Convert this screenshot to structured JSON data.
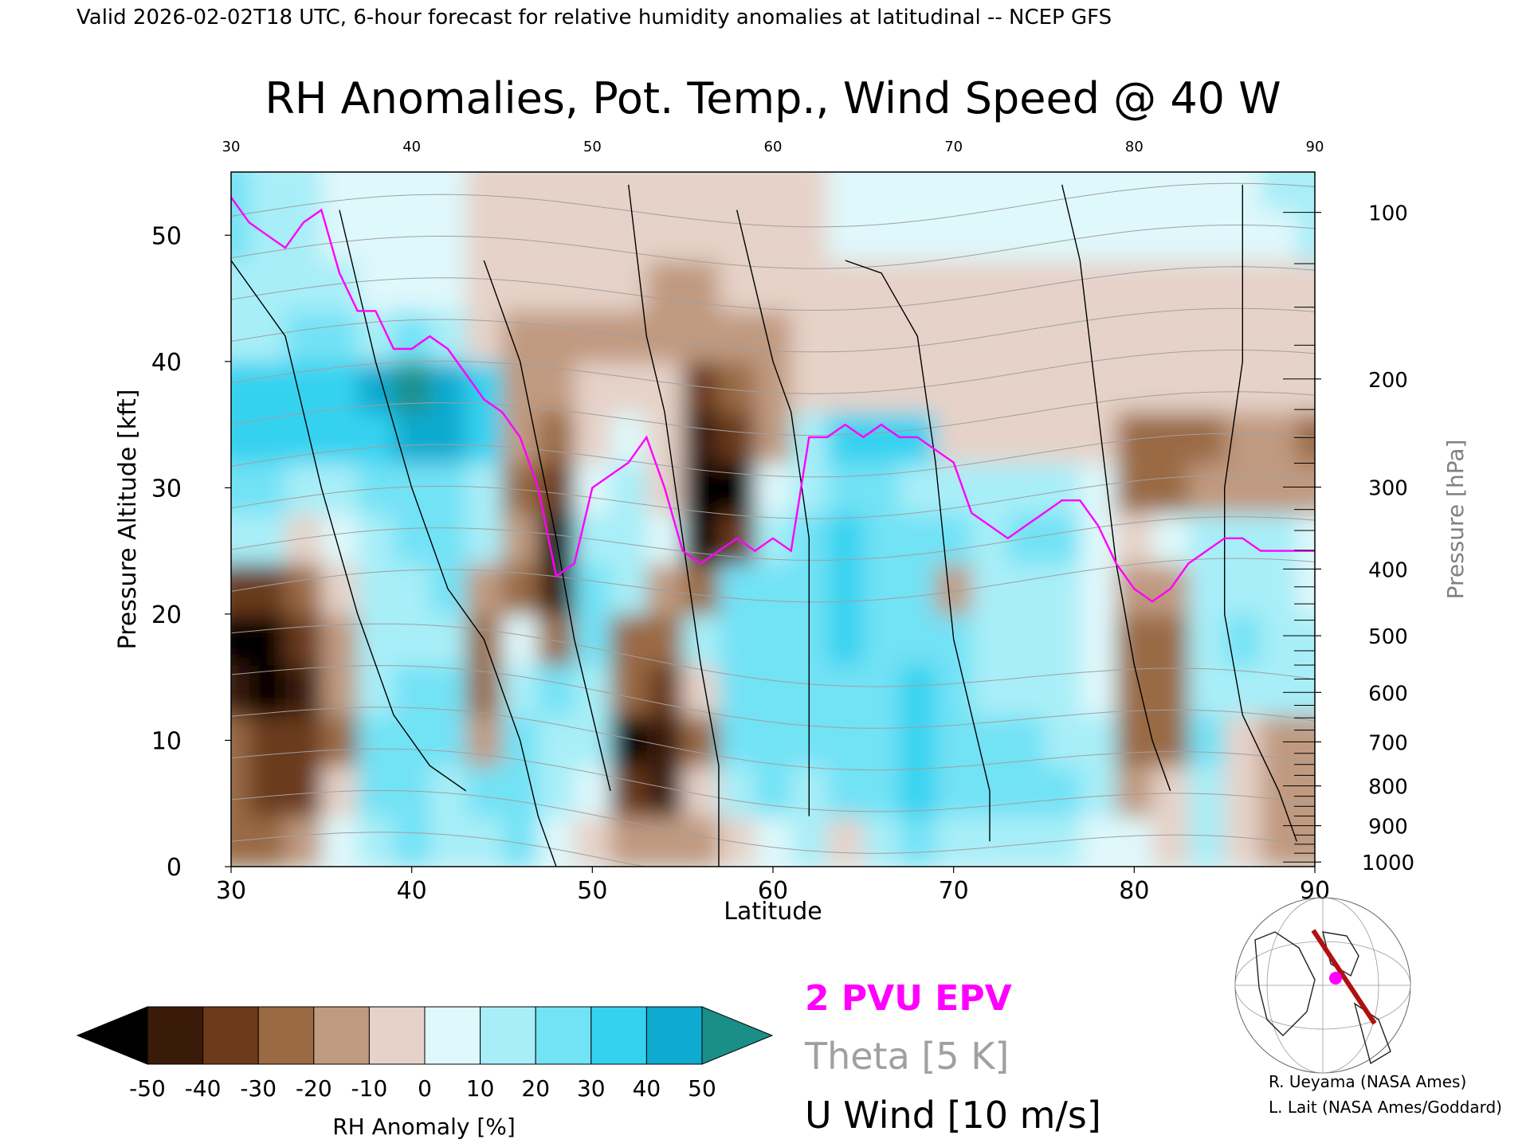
{
  "header": "Valid 2026-02-02T18 UTC, 6-hour forecast for relative humidity anomalies at latitudinal -- NCEP GFS",
  "title": "RH Anomalies, Pot. Temp., Wind Speed @ 40 W",
  "legend": {
    "pv_label": "2 PVU EPV",
    "theta_label": "Theta [5 K]",
    "wind_label": "U Wind [10 m/s]",
    "pv_color": "#ff00ff",
    "theta_color": "#a0a0a0",
    "wind_color": "#000000"
  },
  "colorbar": {
    "label": "RH Anomaly [%]",
    "ticks": [
      "-50",
      "-40",
      "-30",
      "-20",
      "-10",
      "0",
      "10",
      "20",
      "30",
      "40",
      "50"
    ],
    "colors": [
      "#000000",
      "#3a1a08",
      "#6b3a1a",
      "#9a6a45",
      "#c09a80",
      "#e6d2c8",
      "#dff8fb",
      "#a8eef8",
      "#72e2f5",
      "#35d2f0",
      "#0eaad0",
      "#0a8fb0",
      "#1a8f88"
    ]
  },
  "credits": [
    "R. Ueyama (NASA Ames)",
    "L. Lait (NASA Ames/Goddard)"
  ],
  "chart_data": {
    "type": "heatmap",
    "xlabel": "Latitude",
    "ylabel_left": "Pressure Altitude [kft]",
    "ylabel_right": "Pressure [hPa]",
    "xlim": [
      30,
      90
    ],
    "ylim": [
      0,
      55
    ],
    "x_ticks": [
      "30",
      "40",
      "50",
      "60",
      "70",
      "80",
      "90"
    ],
    "y_ticks_left": [
      "0",
      "10",
      "20",
      "30",
      "40",
      "50"
    ],
    "y_ticks_right": [
      "100",
      "200",
      "300",
      "400",
      "500",
      "600",
      "700",
      "800",
      "900",
      "1000"
    ],
    "pressure_levels": [
      100,
      200,
      300,
      400,
      500,
      600,
      700,
      800,
      900,
      1000
    ],
    "rh_anomaly_grid": {
      "lat": [
        30,
        32,
        34,
        36,
        38,
        40,
        42,
        44,
        46,
        48,
        50,
        52,
        54,
        56,
        58,
        60,
        62,
        64,
        66,
        68,
        70,
        72,
        74,
        76,
        78,
        80,
        82,
        84,
        86,
        88,
        90
      ],
      "alt_kft": [
        2,
        6,
        10,
        14,
        18,
        22,
        26,
        30,
        34,
        38,
        42,
        46,
        50,
        54
      ],
      "values": [
        [
          -25,
          -30,
          -20,
          5,
          15,
          20,
          15,
          10,
          25,
          5,
          -10,
          -20,
          -20,
          -15,
          -5,
          5,
          10,
          -10,
          15,
          20,
          15,
          10,
          15,
          10,
          5,
          0,
          -10,
          15,
          -10,
          -20,
          -20
        ],
        [
          -30,
          -40,
          -35,
          -10,
          25,
          20,
          15,
          20,
          25,
          10,
          5,
          -40,
          -45,
          -10,
          15,
          25,
          15,
          20,
          25,
          30,
          25,
          20,
          25,
          20,
          15,
          -15,
          -10,
          15,
          -10,
          -20,
          -15
        ],
        [
          -30,
          -35,
          -40,
          -25,
          20,
          25,
          25,
          -20,
          25,
          15,
          10,
          -50,
          -45,
          -25,
          20,
          25,
          20,
          25,
          25,
          30,
          25,
          20,
          20,
          15,
          10,
          -30,
          -25,
          20,
          -10,
          -20,
          -15
        ],
        [
          -45,
          -50,
          -45,
          -20,
          10,
          20,
          20,
          -30,
          10,
          25,
          15,
          -30,
          -40,
          -10,
          20,
          25,
          25,
          25,
          25,
          30,
          20,
          15,
          15,
          15,
          5,
          -30,
          -30,
          15,
          15,
          15,
          10
        ],
        [
          -50,
          -50,
          -40,
          -15,
          10,
          15,
          15,
          -30,
          5,
          -30,
          20,
          -25,
          -30,
          15,
          20,
          25,
          25,
          30,
          25,
          25,
          20,
          15,
          15,
          10,
          5,
          -25,
          -25,
          15,
          20,
          15,
          10
        ],
        [
          -40,
          -35,
          -25,
          -5,
          15,
          10,
          20,
          -20,
          -30,
          -45,
          20,
          15,
          -20,
          -30,
          20,
          20,
          25,
          30,
          25,
          25,
          -15,
          15,
          15,
          10,
          5,
          -20,
          -15,
          15,
          15,
          15,
          5
        ],
        [
          15,
          15,
          -10,
          5,
          10,
          20,
          20,
          10,
          -20,
          -50,
          10,
          15,
          5,
          -50,
          -40,
          15,
          25,
          30,
          25,
          25,
          20,
          15,
          20,
          20,
          5,
          -10,
          5,
          15,
          15,
          10,
          5
        ],
        [
          20,
          20,
          15,
          15,
          20,
          25,
          25,
          10,
          -25,
          -35,
          5,
          15,
          -10,
          -50,
          -50,
          5,
          15,
          25,
          25,
          15,
          10,
          10,
          10,
          10,
          5,
          -30,
          -30,
          -20,
          -20,
          -20,
          -20
        ],
        [
          35,
          35,
          30,
          30,
          35,
          40,
          40,
          35,
          -20,
          -30,
          -10,
          5,
          -10,
          -45,
          -40,
          -20,
          15,
          30,
          35,
          35,
          -5,
          -10,
          -10,
          -10,
          -10,
          -25,
          -30,
          -30,
          -20,
          -20,
          -30
        ],
        [
          30,
          35,
          35,
          35,
          40,
          50,
          45,
          30,
          -15,
          -20,
          -5,
          -10,
          -10,
          -35,
          -30,
          -15,
          -5,
          -5,
          -10,
          -10,
          -10,
          -10,
          -10,
          -10,
          -10,
          -10,
          -10,
          -10,
          -10,
          -10,
          -10
        ],
        [
          10,
          15,
          20,
          25,
          15,
          25,
          10,
          -10,
          -20,
          -20,
          -15,
          -15,
          -15,
          -15,
          -15,
          -15,
          -10,
          -10,
          -10,
          -10,
          -10,
          -10,
          -10,
          -10,
          -10,
          -10,
          -10,
          -10,
          -10,
          -10,
          -10
        ],
        [
          15,
          15,
          10,
          10,
          5,
          5,
          0,
          -5,
          -10,
          -10,
          -10,
          -10,
          -15,
          -15,
          -10,
          -10,
          -5,
          -5,
          -5,
          -5,
          -5,
          -5,
          -5,
          -5,
          -5,
          -5,
          -5,
          -5,
          -5,
          -5,
          -5
        ],
        [
          20,
          15,
          10,
          5,
          5,
          0,
          0,
          -5,
          -5,
          -5,
          -5,
          -10,
          -10,
          -10,
          -5,
          -5,
          -5,
          0,
          0,
          0,
          0,
          0,
          0,
          0,
          0,
          0,
          0,
          0,
          0,
          5,
          10
        ],
        [
          20,
          15,
          10,
          5,
          0,
          0,
          0,
          -5,
          -5,
          -5,
          -5,
          -10,
          -10,
          -10,
          -10,
          -5,
          -5,
          0,
          0,
          0,
          0,
          0,
          0,
          0,
          0,
          0,
          0,
          5,
          5,
          10,
          15
        ]
      ]
    },
    "pv_2pvu_line": {
      "lat": [
        30,
        31,
        32,
        33,
        34,
        35,
        36,
        37,
        38,
        39,
        40,
        41,
        42,
        43,
        44,
        45,
        46,
        47,
        48,
        49,
        50,
        51,
        52,
        53,
        54,
        55,
        56,
        57,
        58,
        59,
        60,
        61,
        62,
        63,
        64,
        65,
        66,
        67,
        68,
        69,
        70,
        71,
        72,
        73,
        74,
        75,
        76,
        77,
        78,
        79,
        80,
        81,
        82,
        83,
        84,
        85,
        86,
        87,
        88,
        89,
        90
      ],
      "alt_kft": [
        53,
        51,
        50,
        49,
        51,
        52,
        47,
        44,
        44,
        41,
        41,
        42,
        41,
        39,
        37,
        36,
        34,
        30,
        23,
        24,
        30,
        31,
        32,
        34,
        30,
        25,
        24,
        25,
        26,
        25,
        26,
        25,
        34,
        34,
        35,
        34,
        35,
        34,
        34,
        33,
        32,
        28,
        27,
        26,
        27,
        28,
        29,
        29,
        27,
        24,
        22,
        21,
        22,
        24,
        25,
        26,
        26,
        25,
        25,
        25,
        25
      ]
    },
    "theta_contours_K": [
      270,
      280,
      290,
      300,
      310,
      320,
      330,
      340,
      350,
      360,
      370,
      380,
      390,
      400,
      410,
      420
    ],
    "u_wind_contours_ms": [
      -10,
      0,
      10,
      30,
      50,
      70
    ]
  }
}
